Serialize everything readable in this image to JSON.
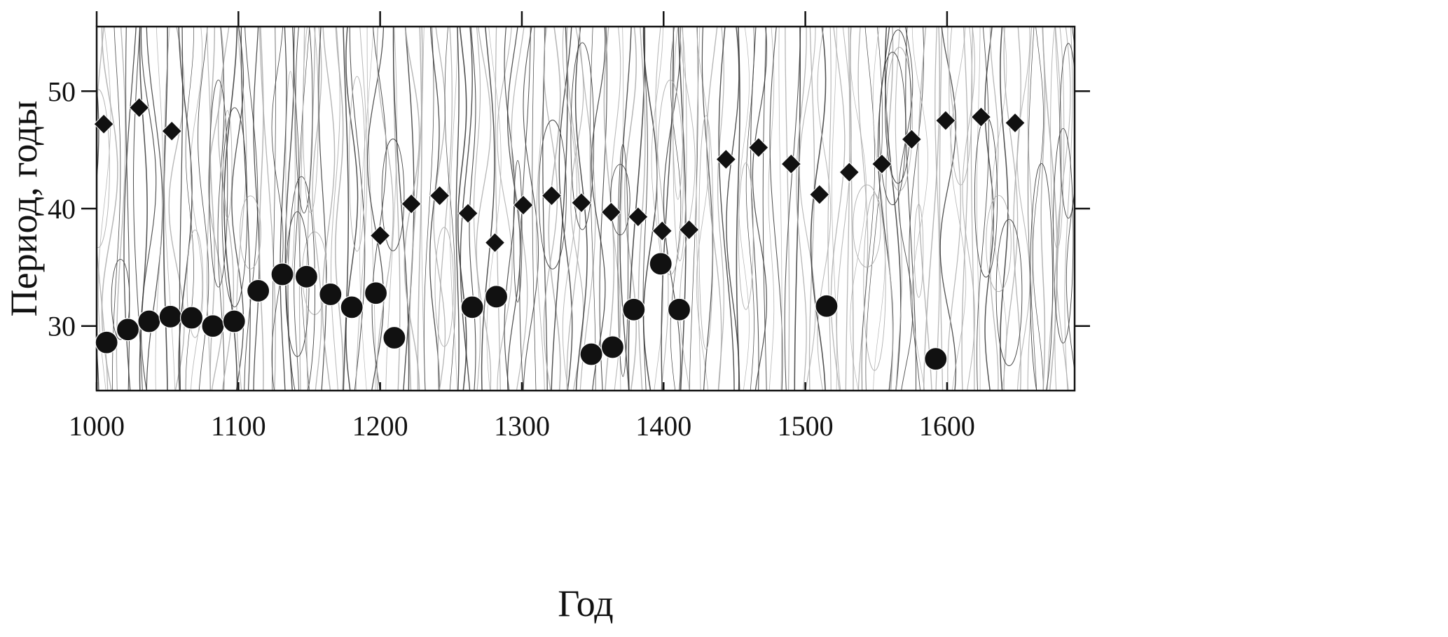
{
  "chart_data": {
    "type": "scatter",
    "title": "",
    "xlabel": "Год",
    "ylabel": "Период, годы",
    "xlim": [
      1000,
      1690
    ],
    "ylim": [
      24.5,
      55.5
    ],
    "x_ticks": [
      1000,
      1100,
      1200,
      1300,
      1400,
      1500,
      1600
    ],
    "y_ticks": [
      30,
      40,
      50
    ],
    "background": "wavelet contour lines (grey/black), no grid",
    "series": [
      {
        "marker": "diamond",
        "color": "#111111",
        "points": [
          {
            "x": 1005,
            "y": 47.2
          },
          {
            "x": 1030,
            "y": 48.6
          },
          {
            "x": 1053,
            "y": 46.6
          },
          {
            "x": 1200,
            "y": 37.7
          },
          {
            "x": 1222,
            "y": 40.4
          },
          {
            "x": 1242,
            "y": 41.1
          },
          {
            "x": 1262,
            "y": 39.6
          },
          {
            "x": 1281,
            "y": 37.1
          },
          {
            "x": 1301,
            "y": 40.3
          },
          {
            "x": 1321,
            "y": 41.1
          },
          {
            "x": 1342,
            "y": 40.5
          },
          {
            "x": 1363,
            "y": 39.7
          },
          {
            "x": 1382,
            "y": 39.3
          },
          {
            "x": 1399,
            "y": 38.1
          },
          {
            "x": 1418,
            "y": 38.2
          },
          {
            "x": 1444,
            "y": 44.2
          },
          {
            "x": 1467,
            "y": 45.2
          },
          {
            "x": 1490,
            "y": 43.8
          },
          {
            "x": 1510,
            "y": 41.2
          },
          {
            "x": 1531,
            "y": 43.1
          },
          {
            "x": 1554,
            "y": 43.8
          },
          {
            "x": 1575,
            "y": 45.9
          },
          {
            "x": 1599,
            "y": 47.5
          },
          {
            "x": 1624,
            "y": 47.8
          },
          {
            "x": 1648,
            "y": 47.3
          }
        ]
      },
      {
        "marker": "circle",
        "color": "#111111",
        "points": [
          {
            "x": 1007,
            "y": 28.6
          },
          {
            "x": 1022,
            "y": 29.7
          },
          {
            "x": 1037,
            "y": 30.4
          },
          {
            "x": 1052,
            "y": 30.8
          },
          {
            "x": 1067,
            "y": 30.7
          },
          {
            "x": 1082,
            "y": 30.0
          },
          {
            "x": 1097,
            "y": 30.4
          },
          {
            "x": 1114,
            "y": 33.0
          },
          {
            "x": 1131,
            "y": 34.4
          },
          {
            "x": 1148,
            "y": 34.2
          },
          {
            "x": 1165,
            "y": 32.7
          },
          {
            "x": 1180,
            "y": 31.6
          },
          {
            "x": 1197,
            "y": 32.8
          },
          {
            "x": 1210,
            "y": 29.0
          },
          {
            "x": 1265,
            "y": 31.6
          },
          {
            "x": 1282,
            "y": 32.5
          },
          {
            "x": 1349,
            "y": 27.6
          },
          {
            "x": 1364,
            "y": 28.2
          },
          {
            "x": 1379,
            "y": 31.4
          },
          {
            "x": 1398,
            "y": 35.3
          },
          {
            "x": 1411,
            "y": 31.4
          },
          {
            "x": 1515,
            "y": 31.7
          },
          {
            "x": 1592,
            "y": 27.2
          }
        ]
      }
    ]
  }
}
